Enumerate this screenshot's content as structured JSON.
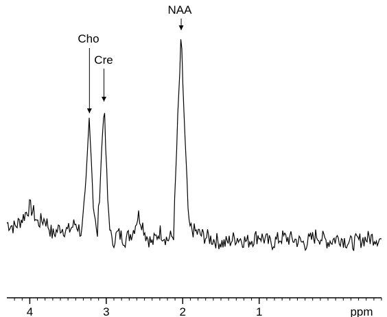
{
  "chart_data": {
    "type": "line",
    "title": "",
    "xlabel": "ppm",
    "ylabel": "",
    "x_reversed": true,
    "xlim": [
      4.3,
      -0.6
    ],
    "ylim": [
      0,
      1.1
    ],
    "ticks": [
      4,
      3,
      2,
      1
    ],
    "tick_labels": [
      "4",
      "3",
      "2",
      "1"
    ],
    "minor_tick_step": 0.1,
    "grid": false,
    "line_color": "#000000",
    "peaks": [
      {
        "label": "NAA",
        "x": 2.02,
        "y": 1.0
      },
      {
        "label": "Cho",
        "x": 3.22,
        "y": 0.63
      },
      {
        "label": "Cre",
        "x": 3.03,
        "y": 0.68
      }
    ],
    "series": [
      {
        "x": [
          4.3,
          4.2,
          4.1,
          4.0,
          3.95,
          3.9,
          3.8,
          3.7,
          3.6,
          3.5,
          3.4,
          3.32,
          3.27,
          3.22,
          3.17,
          3.12,
          3.08,
          3.03,
          2.98,
          2.93,
          2.85,
          2.75,
          2.65,
          2.58,
          2.53,
          2.48,
          2.4,
          2.3,
          2.2,
          2.12,
          2.07,
          2.02,
          1.97,
          1.92,
          1.85,
          1.75,
          1.6,
          1.45,
          1.3,
          1.15,
          1.0,
          0.85,
          0.7,
          0.55,
          0.4,
          0.25,
          0.1,
          -0.05,
          -0.2,
          -0.35,
          -0.5,
          -0.6
        ],
        "y": [
          0.1,
          0.08,
          0.12,
          0.18,
          0.15,
          0.1,
          0.12,
          0.04,
          0.08,
          0.06,
          0.1,
          0.05,
          0.25,
          0.63,
          0.2,
          0.02,
          0.3,
          0.68,
          0.2,
          0.0,
          0.05,
          0.02,
          0.06,
          0.14,
          0.1,
          0.04,
          0.0,
          0.06,
          0.02,
          0.04,
          0.55,
          1.0,
          0.5,
          0.08,
          0.06,
          0.04,
          0.02,
          0.0,
          0.03,
          0.01,
          0.04,
          0.0,
          0.03,
          0.02,
          0.0,
          0.04,
          0.01,
          0.03,
          0.0,
          0.02,
          0.03,
          0.02
        ]
      }
    ]
  }
}
